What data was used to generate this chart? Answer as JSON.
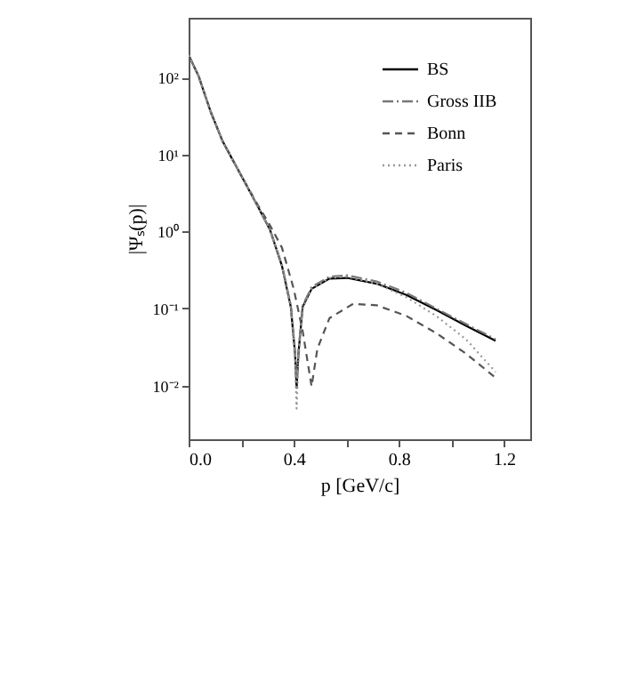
{
  "chart_data": {
    "type": "line",
    "xlabel": "p [GeV/c]",
    "ylabel": "|Ψₛ(p)|",
    "log": "y",
    "xlim": [
      0,
      1.3
    ],
    "xticks": [
      {
        "value": 0,
        "label": "0.0"
      },
      {
        "value": 0.2,
        "label": null
      },
      {
        "value": 0.4,
        "label": "0.4"
      },
      {
        "value": 0.6,
        "label": null
      },
      {
        "value": 0.8,
        "label": "0.8"
      },
      {
        "value": 1.0,
        "label": null
      },
      {
        "value": 1.2,
        "label": "1.2"
      }
    ],
    "ylim": [
      0.002,
      600
    ],
    "yticks": [
      {
        "value": 0.01,
        "label": "10⁻²"
      },
      {
        "value": 0.1,
        "label": "10⁻¹"
      },
      {
        "value": 1,
        "label": "10⁰"
      },
      {
        "value": 10,
        "label": "10¹"
      },
      {
        "value": 100,
        "label": "10²"
      }
    ],
    "grid": false,
    "legend": "top right",
    "marker": "none",
    "series": [
      {
        "name": "BS",
        "color": "#000000",
        "line_style": "solid",
        "x": [
          0,
          0.038,
          0.084,
          0.129,
          0.197,
          0.264,
          0.31,
          0.355,
          0.389,
          0.405,
          0.411,
          0.418,
          0.434,
          0.468,
          0.536,
          0.603,
          0.716,
          0.829,
          0.942,
          1.055,
          1.168
        ],
        "values": [
          196,
          105,
          36,
          15,
          5.6,
          2.1,
          1.05,
          0.36,
          0.105,
          0.026,
          0.0093,
          0.026,
          0.105,
          0.18,
          0.245,
          0.25,
          0.21,
          0.15,
          0.096,
          0.06,
          0.038
        ]
      },
      {
        "name": "Gross IIB",
        "color": "#777777",
        "line_style": "dashdot",
        "x": [
          0,
          0.038,
          0.084,
          0.129,
          0.197,
          0.264,
          0.31,
          0.355,
          0.389,
          0.405,
          0.411,
          0.418,
          0.434,
          0.468,
          0.536,
          0.603,
          0.716,
          0.829,
          0.942,
          1.055,
          1.168
        ],
        "values": [
          196,
          105,
          36,
          15,
          5.6,
          2.1,
          1.05,
          0.37,
          0.11,
          0.028,
          0.011,
          0.028,
          0.11,
          0.19,
          0.26,
          0.27,
          0.225,
          0.16,
          0.1,
          0.063,
          0.04
        ]
      },
      {
        "name": "Bonn",
        "color": "#555555",
        "line_style": "dashed",
        "x": [
          0,
          0.038,
          0.084,
          0.129,
          0.197,
          0.264,
          0.31,
          0.355,
          0.4,
          0.434,
          0.468,
          0.49,
          0.536,
          0.626,
          0.716,
          0.829,
          0.942,
          1.055,
          1.168
        ],
        "values": [
          196,
          105,
          36,
          15,
          5.6,
          2.2,
          1.2,
          0.62,
          0.18,
          0.051,
          0.0097,
          0.03,
          0.075,
          0.115,
          0.11,
          0.08,
          0.048,
          0.026,
          0.0126
        ]
      },
      {
        "name": "Paris",
        "color": "#999999",
        "line_style": "dotted",
        "x": [
          0,
          0.038,
          0.084,
          0.129,
          0.197,
          0.264,
          0.31,
          0.355,
          0.389,
          0.405,
          0.411,
          0.418,
          0.434,
          0.468,
          0.536,
          0.603,
          0.716,
          0.829,
          0.942,
          1.055,
          1.168
        ],
        "values": [
          196,
          105,
          36,
          15,
          5.6,
          2.1,
          1.05,
          0.36,
          0.1,
          0.022,
          0.005,
          0.022,
          0.1,
          0.18,
          0.25,
          0.26,
          0.21,
          0.14,
          0.08,
          0.04,
          0.015
        ]
      }
    ]
  }
}
